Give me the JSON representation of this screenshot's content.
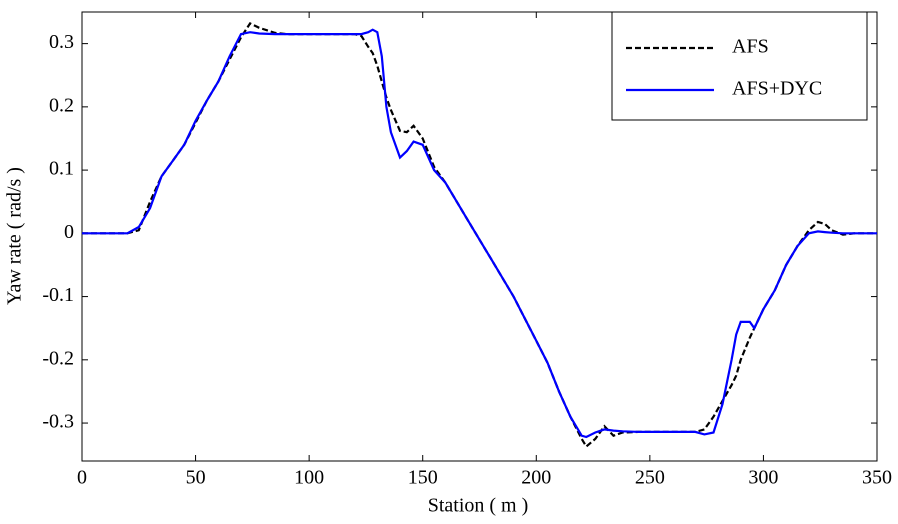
{
  "chart_data": {
    "type": "line",
    "x_label": "Station ( m )",
    "y_label": "Yaw rate ( rad/s )",
    "x": [
      0,
      10,
      20,
      25,
      30,
      35,
      40,
      45,
      50,
      55,
      60,
      65,
      70,
      74,
      78,
      85,
      90,
      100,
      110,
      120,
      123,
      126,
      128,
      130,
      132,
      134,
      136,
      140,
      143,
      146,
      150,
      155,
      160,
      170,
      180,
      190,
      200,
      205,
      210,
      215,
      220,
      222,
      226,
      230,
      234,
      238,
      245,
      260,
      270,
      274,
      278,
      282,
      286,
      288,
      290,
      294,
      296,
      300,
      305,
      310,
      315,
      320,
      324,
      327,
      330,
      335,
      340,
      350
    ],
    "series": [
      {
        "name": "AFS",
        "color": "#000000",
        "dash": true,
        "values": [
          0,
          0,
          0,
          0.005,
          0.05,
          0.09,
          0.115,
          0.14,
          0.175,
          0.21,
          0.24,
          0.275,
          0.31,
          0.332,
          0.325,
          0.317,
          0.315,
          0.315,
          0.315,
          0.315,
          0.312,
          0.295,
          0.285,
          0.265,
          0.24,
          0.215,
          0.195,
          0.162,
          0.16,
          0.17,
          0.15,
          0.105,
          0.08,
          0.02,
          -0.04,
          -0.1,
          -0.17,
          -0.205,
          -0.25,
          -0.29,
          -0.325,
          -0.337,
          -0.325,
          -0.305,
          -0.32,
          -0.315,
          -0.314,
          -0.314,
          -0.314,
          -0.31,
          -0.29,
          -0.265,
          -0.24,
          -0.225,
          -0.2,
          -0.165,
          -0.15,
          -0.12,
          -0.09,
          -0.05,
          -0.02,
          0.005,
          0.018,
          0.015,
          0.005,
          -0.002,
          0,
          0
        ]
      },
      {
        "name": "AFS+DYC",
        "color": "#0000ff",
        "dash": false,
        "values": [
          0,
          0,
          0,
          0.01,
          0.04,
          0.09,
          0.115,
          0.14,
          0.178,
          0.21,
          0.24,
          0.28,
          0.315,
          0.318,
          0.316,
          0.315,
          0.315,
          0.315,
          0.315,
          0.315,
          0.315,
          0.318,
          0.322,
          0.318,
          0.28,
          0.2,
          0.16,
          0.12,
          0.13,
          0.145,
          0.14,
          0.1,
          0.08,
          0.02,
          -0.04,
          -0.1,
          -0.17,
          -0.205,
          -0.25,
          -0.29,
          -0.32,
          -0.322,
          -0.315,
          -0.31,
          -0.312,
          -0.313,
          -0.314,
          -0.314,
          -0.314,
          -0.318,
          -0.315,
          -0.27,
          -0.2,
          -0.16,
          -0.14,
          -0.14,
          -0.15,
          -0.12,
          -0.09,
          -0.05,
          -0.02,
          0,
          0.003,
          0.002,
          0.001,
          0,
          0,
          0
        ]
      }
    ],
    "xlim": [
      0,
      350
    ],
    "xticks": [
      0,
      50,
      100,
      150,
      200,
      250,
      300,
      350
    ],
    "ylim": [
      -0.36,
      0.35
    ],
    "yticks": [
      -0.3,
      -0.2,
      -0.1,
      0,
      0.1,
      0.2,
      0.3
    ],
    "legend": "upper right"
  }
}
